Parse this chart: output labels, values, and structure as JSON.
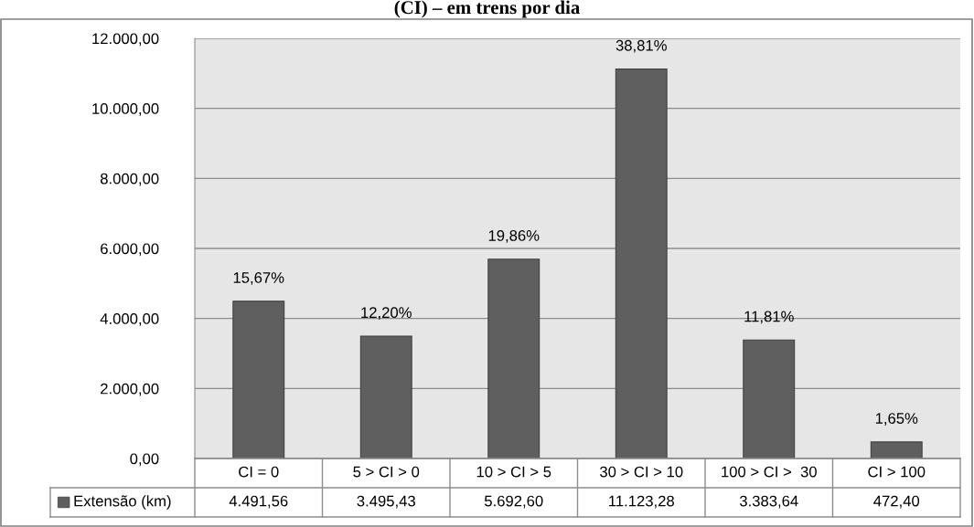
{
  "chart_data": {
    "type": "bar",
    "title": "(CI) – em trens por dia",
    "categories": [
      "CI = 0",
      "5 > CI > 0",
      "10 > CI > 5",
      "30 > CI > 10",
      "100 > CI >  30",
      "CI > 100"
    ],
    "series": [
      {
        "name": "Extensão (km)",
        "color": "#5f5f5f",
        "values": [
          4491.56,
          3495.43,
          5692.6,
          11123.28,
          3383.64,
          472.4
        ],
        "value_labels": [
          "4.491,56",
          "3.495,43",
          "5.692,60",
          "11.123,28",
          "3.383,64",
          "472,40"
        ]
      }
    ],
    "annotations": [
      {
        "text": "15,67%",
        "x": "CI = 0",
        "y": 4491.56
      },
      {
        "text": "12,20%",
        "x": "5 > CI > 0",
        "y": 3495.43
      },
      {
        "text": "19,86%",
        "x": "10 > CI > 5",
        "y": 5692.6
      },
      {
        "text": "38,81%",
        "x": "30 > CI > 10",
        "y": 11123.28
      },
      {
        "text": "11,81%",
        "x": "100 > CI >  30",
        "y": 3383.64
      },
      {
        "text": "1,65%",
        "x": "CI > 100",
        "y": 472.4
      }
    ],
    "ylim": [
      0,
      12000
    ],
    "yticks": [
      {
        "value": 0,
        "label": "0,00"
      },
      {
        "value": 2000,
        "label": "2.000,00"
      },
      {
        "value": 4000,
        "label": "4.000,00"
      },
      {
        "value": 6000,
        "label": "6.000,00"
      },
      {
        "value": 8000,
        "label": "8.000,00"
      },
      {
        "value": 10000,
        "label": "10.000,00"
      },
      {
        "value": 12000,
        "label": "12.000,00"
      }
    ],
    "grid": "y",
    "legend": "bottom"
  }
}
